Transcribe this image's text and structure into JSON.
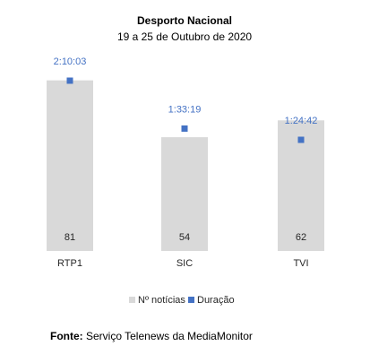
{
  "chart_data": {
    "type": "bar",
    "title": "Desporto Nacional",
    "subtitle": "19 a 25 de Outubro de 2020",
    "categories": [
      "RTP1",
      "SIC",
      "TVI"
    ],
    "series": [
      {
        "name": "Nº notícias",
        "type": "bar",
        "color": "#d9d9d9",
        "values": [
          81,
          54,
          62
        ]
      },
      {
        "name": "Duração",
        "type": "marker",
        "color": "#4472c4",
        "values": [
          "2:10:03",
          "1:33:19",
          "1:24:42"
        ]
      }
    ],
    "ylim": [
      0,
      100
    ],
    "grid": false,
    "legend": "bottom"
  },
  "source": {
    "label": "Fonte:",
    "text": "Serviço Telenews da MediaMonitor"
  }
}
